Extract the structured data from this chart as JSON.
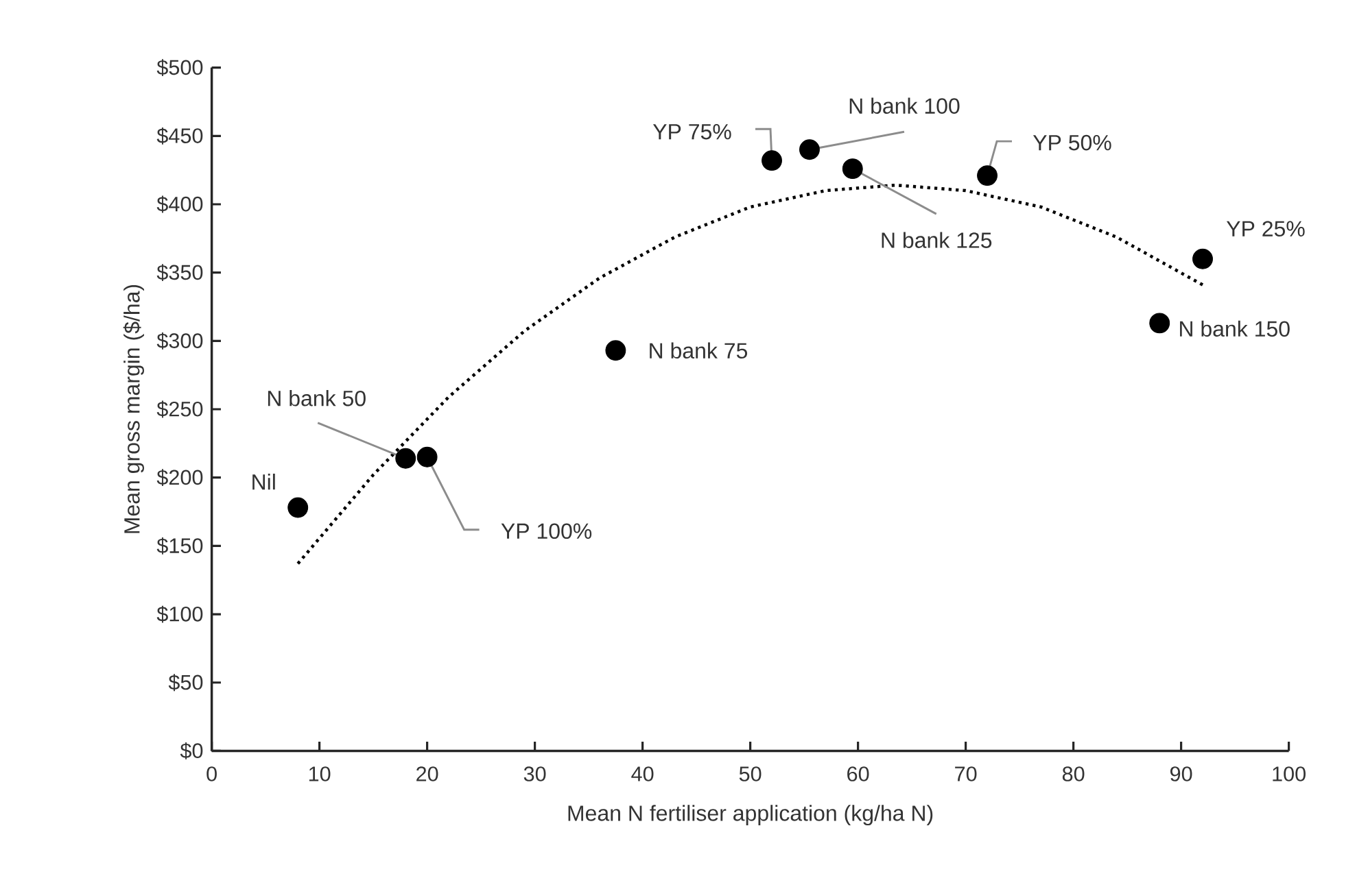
{
  "chart_data": {
    "type": "scatter",
    "xlabel": "Mean N fertiliser application (kg/ha N)",
    "ylabel": "Mean gross margin ($/ha)",
    "xlim": [
      0,
      100
    ],
    "ylim": [
      0,
      500
    ],
    "xticks": [
      0,
      10,
      20,
      30,
      40,
      50,
      60,
      70,
      80,
      90,
      100
    ],
    "yticks": [
      {
        "value": 0,
        "label": "$0"
      },
      {
        "value": 50,
        "label": "$50"
      },
      {
        "value": 100,
        "label": "$100"
      },
      {
        "value": 150,
        "label": "$150"
      },
      {
        "value": 200,
        "label": "$200"
      },
      {
        "value": 250,
        "label": "$250"
      },
      {
        "value": 300,
        "label": "$300"
      },
      {
        "value": 350,
        "label": "$350"
      },
      {
        "value": 400,
        "label": "$400"
      },
      {
        "value": 450,
        "label": "$450"
      },
      {
        "value": 500,
        "label": "$500"
      }
    ],
    "series": [
      {
        "color": "#000000",
        "marker": "circle",
        "x": [
          8.0,
          18.0,
          20.0,
          37.5,
          52.0,
          55.5,
          59.5,
          72.0,
          92.0,
          88.0
        ],
        "values": [
          178,
          214,
          215,
          293,
          432,
          440,
          426,
          421,
          360,
          313
        ]
      },
      {
        "type": "line",
        "color": "#000000",
        "marker": "none",
        "line_style": "dotted",
        "x": [
          8,
          15,
          22,
          29,
          36,
          43,
          50,
          57,
          63.5,
          70,
          77,
          84,
          92
        ],
        "values": [
          137,
          202,
          259,
          307,
          346,
          376,
          398,
          410,
          414,
          410,
          398,
          376,
          341
        ]
      }
    ],
    "annotations": [
      {
        "text": "Nil",
        "x": 8.0,
        "y": 178
      },
      {
        "text": "N bank 50",
        "x": 18.0,
        "y": 214
      },
      {
        "text": "YP 100%",
        "x": 20.0,
        "y": 215
      },
      {
        "text": "N bank 75",
        "x": 37.5,
        "y": 293
      },
      {
        "text": "YP 75%",
        "x": 52.0,
        "y": 432
      },
      {
        "text": "N bank 100",
        "x": 55.5,
        "y": 440
      },
      {
        "text": "N bank 125",
        "x": 59.5,
        "y": 426
      },
      {
        "text": "YP 50%",
        "x": 72.0,
        "y": 421
      },
      {
        "text": "YP 25%",
        "x": 92.0,
        "y": 360
      },
      {
        "text": "N bank 150",
        "x": 88.0,
        "y": 313
      }
    ]
  }
}
